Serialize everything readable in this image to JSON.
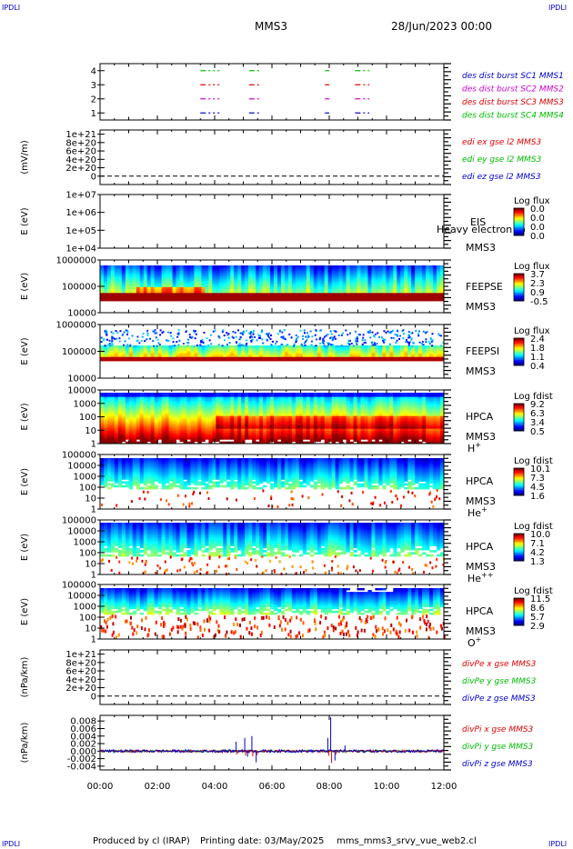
{
  "header": {
    "corner_tl": "IPDLI",
    "corner_tr": "IPDLI",
    "corner_bl": "IPDLI",
    "corner_br": "IPDLI",
    "spacecraft": "MMS3",
    "date": "28/Jun/2023 00:00"
  },
  "footer": {
    "produced_by": "Produced by cl (IRAP)",
    "printing_date": "Printing date: 03/May/2025",
    "script_name": "mms_mms3_srvy_vue_web2.cl"
  },
  "colors": {
    "red": "#dd0000",
    "green": "#00bb00",
    "blue": "#0000cc",
    "magenta": "#cc00cc"
  },
  "chart_data": [
    {
      "type": "line",
      "panel": "burst-availability",
      "ylim": [
        0.5,
        4.5
      ],
      "yticks": [
        "1",
        "2",
        "3",
        "4"
      ],
      "legend": [
        {
          "label": "des dist burst SC1 MMS1",
          "color": "#0000cc"
        },
        {
          "label": "des dist burst SC2 MMS2",
          "color": "#cc00cc"
        },
        {
          "label": "des dist burst SC3 MMS3",
          "color": "#dd0000"
        },
        {
          "label": "des dist burst SC4 MMS4",
          "color": "#00bb00"
        }
      ],
      "intervals_hours": [
        [
          3.5,
          4.2
        ],
        [
          5.2,
          5.6
        ],
        [
          7.85,
          8.0
        ],
        [
          8.9,
          9.4
        ]
      ]
    },
    {
      "type": "line",
      "panel": "edi-e-field",
      "ylabel": "(mV/m)",
      "ylim": [
        -2e+20,
        1.1e+21
      ],
      "yticks": [
        "0",
        "2e+20",
        "4e+20",
        "6e+20",
        "8e+20",
        "1e+21"
      ],
      "legend": [
        {
          "label": "edi ex gse l2 MMS3",
          "color": "#dd0000"
        },
        {
          "label": "edi ey gse l2 MMS3",
          "color": "#00bb00"
        },
        {
          "label": "edi ez gse l2 MMS3",
          "color": "#0000cc"
        }
      ]
    },
    {
      "type": "heatmap",
      "panel": "eis",
      "ylabel": "E (eV)",
      "yticks": [
        "1e+04",
        "1e+05",
        "1e+06",
        "1e+07"
      ],
      "label": "EIS",
      "species": "Heavy electron to",
      "sc": "MMS3",
      "cbar_title": "Log flux",
      "cbar_ticks": [
        "0.0",
        "0.0",
        "0.0",
        "0.0"
      ],
      "empty": true
    },
    {
      "type": "heatmap",
      "panel": "feeps-e",
      "ylabel": "E (eV)",
      "yticks": [
        "10000",
        "100000",
        "1000000"
      ],
      "label": "FEEPSE",
      "sc": "MMS3",
      "cbar_title": "Log flux",
      "cbar_ticks": [
        "3.7",
        "2.3",
        "0.9",
        "-0.5"
      ]
    },
    {
      "type": "heatmap",
      "panel": "feeps-i",
      "ylabel": "E (eV)",
      "yticks": [
        "10000",
        "100000",
        "1000000"
      ],
      "label": "FEEPSI",
      "sc": "MMS3",
      "cbar_title": "Log flux",
      "cbar_ticks": [
        "2.4",
        "1.8",
        "1.1",
        "0.4"
      ]
    },
    {
      "type": "heatmap",
      "panel": "hpca-h",
      "ylabel": "E (eV)",
      "yticks": [
        "1",
        "10",
        "100",
        "1000",
        "10000"
      ],
      "label": "HPCA",
      "sc": "MMS3",
      "ion": "H",
      "charge": "+",
      "cbar_title": "Log fdist",
      "cbar_ticks": [
        "9.2",
        "6.3",
        "3.4",
        "0.5"
      ]
    },
    {
      "type": "heatmap",
      "panel": "hpca-he",
      "ylabel": "E (eV)",
      "yticks": [
        "1",
        "10",
        "100",
        "1000",
        "10000",
        "100000"
      ],
      "label": "HPCA",
      "sc": "MMS3",
      "ion": "He",
      "charge": "+",
      "cbar_title": "Log fdist",
      "cbar_ticks": [
        "10.1",
        "7.3",
        "4.5",
        "1.6"
      ]
    },
    {
      "type": "heatmap",
      "panel": "hpca-he2",
      "ylabel": "E (eV)",
      "yticks": [
        "1",
        "10",
        "100",
        "1000",
        "10000",
        "100000"
      ],
      "label": "HPCA",
      "sc": "MMS3",
      "ion": "He",
      "charge": "++",
      "cbar_title": "Log fdist",
      "cbar_ticks": [
        "10.0",
        "7.1",
        "4.2",
        "1.3"
      ]
    },
    {
      "type": "heatmap",
      "panel": "hpca-o",
      "ylabel": "E (eV)",
      "yticks": [
        "1",
        "10",
        "100",
        "1000",
        "10000",
        "100000"
      ],
      "label": "HPCA",
      "sc": "MMS3",
      "ion": "O",
      "charge": "+",
      "cbar_title": "Log fdist",
      "cbar_ticks": [
        "11.5",
        "8.6",
        "5.7",
        "2.9"
      ]
    },
    {
      "type": "line",
      "panel": "divpe",
      "ylabel": "(nPa/km)",
      "ylim": [
        -2e+20,
        1.1e+21
      ],
      "yticks": [
        "0",
        "2e+20",
        "4e+20",
        "6e+20",
        "8e+20",
        "1e+21"
      ],
      "legend": [
        {
          "label": "divPe x gse MMS3",
          "color": "#dd0000"
        },
        {
          "label": "divPe y gse MMS3",
          "color": "#00bb00"
        },
        {
          "label": "divPe z gse MMS3",
          "color": "#0000cc"
        }
      ]
    },
    {
      "type": "line",
      "panel": "divpi",
      "ylabel": "(nPa/km)",
      "ylim": [
        -0.005,
        0.0095
      ],
      "yticks": [
        "-0.004",
        "-0.002",
        "0.000",
        "0.002",
        "0.004",
        "0.006",
        "0.008"
      ],
      "legend": [
        {
          "label": "divPi x gse MMS3",
          "color": "#dd0000"
        },
        {
          "label": "divPi y gse MMS3",
          "color": "#00bb00"
        },
        {
          "label": "divPi z gse MMS3",
          "color": "#0000cc"
        }
      ],
      "spikes": [
        {
          "t": 4.75,
          "v": 0.0025
        },
        {
          "t": 5.05,
          "v": 0.0035
        },
        {
          "t": 5.15,
          "v": -0.0015
        },
        {
          "t": 5.3,
          "v": 0.004
        },
        {
          "t": 5.45,
          "v": -0.003
        },
        {
          "t": 7.95,
          "v": 0.0035
        },
        {
          "t": 8.05,
          "v": 0.009
        },
        {
          "t": 8.2,
          "v": -0.0025
        },
        {
          "t": 8.55,
          "v": 0.0015
        }
      ]
    }
  ],
  "xaxis": {
    "ticks": [
      "00:00",
      "02:00",
      "04:00",
      "06:00",
      "08:00",
      "10:00",
      "12:00"
    ],
    "range_hours": [
      0,
      12
    ]
  }
}
